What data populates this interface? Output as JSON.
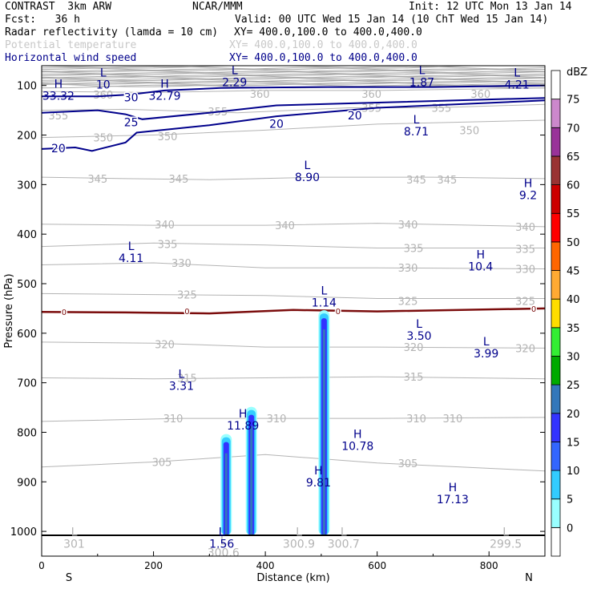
{
  "header": {
    "model": "CONTRAST  3km ARW",
    "org": "NCAR/MMM",
    "init": "Init: 12 UTC Mon 13 Jan 14",
    "fcst": "Fcst:   36 h",
    "valid": "Valid: 00 UTC Wed 15 Jan 14 (10 ChT Wed 15 Jan 14)",
    "fields": [
      {
        "name": "Radar reflectivity (lamda = 10 cm)",
        "xy": "XY= 400.0,100.0 to 400.0,400.0"
      },
      {
        "name": "Potential temperature",
        "xy": "XY= 400.0,100.0 to 400.0,400.0"
      },
      {
        "name": "Horizontal wind speed",
        "xy": "XY= 400.0,100.0 to 400.0,400.0"
      }
    ]
  },
  "colors": {
    "wind": "#00008b",
    "theta": "#b4b4b4",
    "freezing": "#7b0c0c",
    "strat": "#aaaaaa"
  },
  "chart_data": {
    "type": "cross-section",
    "xlabel": "Distance (km)",
    "ylabel": "Pressure (hPa)",
    "xlim": [
      0,
      900
    ],
    "ylim": [
      1050,
      60
    ],
    "x_ticks": [
      0,
      200,
      400,
      600,
      800
    ],
    "y_ticks": [
      100,
      200,
      300,
      400,
      500,
      600,
      700,
      800,
      900,
      1000
    ],
    "x_end_labels": {
      "left": "S",
      "right": "N"
    },
    "ground_pressure": 1008,
    "colorbar": {
      "unit": "dBZ",
      "levels": [
        0,
        5,
        10,
        15,
        20,
        25,
        30,
        35,
        40,
        45,
        50,
        55,
        60,
        65,
        70,
        75
      ],
      "colors": [
        "#ffffff",
        "#99ffff",
        "#33ccff",
        "#3366ff",
        "#3333ff",
        "#3377bb",
        "#00aa00",
        "#33ee33",
        "#ffdd00",
        "#ffaa33",
        "#ff6600",
        "#ff0000",
        "#cc0000",
        "#993333",
        "#993399",
        "#cc88cc",
        "#ffffff"
      ]
    },
    "theta_contours": [
      {
        "value": 360,
        "points": [
          [
            0,
            112
          ],
          [
            200,
            114
          ],
          [
            400,
            110
          ],
          [
            600,
            110
          ],
          [
            900,
            105
          ]
        ],
        "labels": [
          [
            110,
            118
          ],
          [
            390,
            117
          ],
          [
            590,
            117
          ],
          [
            785,
            117
          ]
        ]
      },
      {
        "value": 355,
        "points": [
          [
            0,
            150
          ],
          [
            150,
            148
          ],
          [
            350,
            155
          ],
          [
            550,
            145
          ],
          [
            700,
            145
          ],
          [
            900,
            138
          ]
        ],
        "labels": [
          [
            30,
            160
          ],
          [
            315,
            152
          ],
          [
            590,
            145
          ],
          [
            715,
            145
          ]
        ]
      },
      {
        "value": 350,
        "points": [
          [
            0,
            205
          ],
          [
            200,
            200
          ],
          [
            400,
            190
          ],
          [
            600,
            178
          ],
          [
            900,
            170
          ]
        ],
        "labels": [
          [
            110,
            205
          ],
          [
            225,
            202
          ],
          [
            765,
            190
          ]
        ]
      },
      {
        "value": 345,
        "points": [
          [
            0,
            285
          ],
          [
            150,
            288
          ],
          [
            300,
            290
          ],
          [
            500,
            285
          ],
          [
            700,
            285
          ],
          [
            900,
            288
          ]
        ],
        "labels": [
          [
            100,
            288
          ],
          [
            245,
            288
          ],
          [
            670,
            290
          ],
          [
            725,
            290
          ]
        ]
      },
      {
        "value": 340,
        "points": [
          [
            0,
            380
          ],
          [
            200,
            382
          ],
          [
            400,
            382
          ],
          [
            600,
            378
          ],
          [
            900,
            385
          ]
        ],
        "labels": [
          [
            220,
            380
          ],
          [
            435,
            382
          ],
          [
            655,
            380
          ],
          [
            865,
            385
          ]
        ]
      },
      {
        "value": 335,
        "points": [
          [
            0,
            425
          ],
          [
            200,
            418
          ],
          [
            400,
            422
          ],
          [
            600,
            428
          ],
          [
            900,
            428
          ]
        ],
        "labels": [
          [
            225,
            420
          ],
          [
            665,
            428
          ],
          [
            865,
            430
          ]
        ]
      },
      {
        "value": 330,
        "points": [
          [
            0,
            462
          ],
          [
            200,
            458
          ],
          [
            400,
            468
          ],
          [
            600,
            468
          ],
          [
            900,
            470
          ]
        ],
        "labels": [
          [
            250,
            458
          ],
          [
            655,
            468
          ],
          [
            865,
            470
          ]
        ]
      },
      {
        "value": 325,
        "points": [
          [
            0,
            520
          ],
          [
            200,
            522
          ],
          [
            400,
            524
          ],
          [
            600,
            530
          ],
          [
            900,
            530
          ]
        ],
        "labels": [
          [
            260,
            522
          ],
          [
            655,
            535
          ],
          [
            865,
            535
          ]
        ]
      },
      {
        "value": 320,
        "points": [
          [
            0,
            618
          ],
          [
            200,
            620
          ],
          [
            400,
            628
          ],
          [
            600,
            628
          ],
          [
            900,
            630
          ]
        ],
        "labels": [
          [
            220,
            622
          ],
          [
            665,
            628
          ],
          [
            865,
            630
          ]
        ]
      },
      {
        "value": 315,
        "points": [
          [
            0,
            690
          ],
          [
            200,
            692
          ],
          [
            400,
            690
          ],
          [
            600,
            688
          ],
          [
            900,
            692
          ]
        ],
        "labels": [
          [
            260,
            690
          ],
          [
            665,
            688
          ]
        ]
      },
      {
        "value": 310,
        "points": [
          [
            0,
            778
          ],
          [
            250,
            772
          ],
          [
            400,
            772
          ],
          [
            600,
            772
          ],
          [
            900,
            770
          ]
        ],
        "labels": [
          [
            235,
            772
          ],
          [
            420,
            772
          ],
          [
            670,
            772
          ],
          [
            735,
            772
          ]
        ]
      },
      {
        "value": 305,
        "points": [
          [
            0,
            870
          ],
          [
            200,
            860
          ],
          [
            400,
            845
          ],
          [
            600,
            862
          ],
          [
            900,
            878
          ]
        ],
        "labels": [
          [
            215,
            860
          ],
          [
            655,
            862
          ]
        ]
      }
    ],
    "wind_contours": [
      {
        "value": 30,
        "points": [
          [
            0,
            122
          ],
          [
            100,
            122
          ],
          [
            160,
            118
          ],
          [
            220,
            110
          ],
          [
            320,
            105
          ],
          [
            500,
            103
          ],
          [
            700,
            103
          ],
          [
            900,
            100
          ]
        ],
        "labels": [
          [
            160,
            124
          ]
        ]
      },
      {
        "value": 25,
        "points": [
          [
            0,
            155
          ],
          [
            100,
            150
          ],
          [
            150,
            158
          ],
          [
            180,
            168
          ],
          [
            300,
            155
          ],
          [
            420,
            140
          ],
          [
            900,
            125
          ]
        ],
        "labels": [
          [
            160,
            174
          ]
        ]
      },
      {
        "value": 20,
        "points": [
          [
            0,
            228
          ],
          [
            60,
            225
          ],
          [
            90,
            232
          ],
          [
            150,
            215
          ],
          [
            170,
            195
          ],
          [
            300,
            180
          ],
          [
            420,
            162
          ],
          [
            600,
            145
          ],
          [
            900,
            130
          ]
        ],
        "labels": [
          [
            30,
            227
          ],
          [
            420,
            177
          ],
          [
            560,
            160
          ]
        ]
      }
    ],
    "freezing_level": {
      "value": 0,
      "points": [
        [
          0,
          557
        ],
        [
          150,
          558
        ],
        [
          300,
          560
        ],
        [
          450,
          553
        ],
        [
          600,
          556
        ],
        [
          900,
          550
        ]
      ],
      "labels": [
        [
          40,
          557
        ],
        [
          260,
          555
        ],
        [
          530,
          555
        ],
        [
          880,
          550
        ]
      ]
    },
    "reflectivity_columns": [
      {
        "x": 330,
        "top": 810,
        "bottom": 1008,
        "max_dbz": 20
      },
      {
        "x": 375,
        "top": 755,
        "bottom": 1008,
        "max_dbz": 20
      },
      {
        "x": 505,
        "top": 560,
        "bottom": 1008,
        "max_dbz": 20
      }
    ],
    "wind_extrema": [
      {
        "type": "L",
        "value": "10",
        "x": 110,
        "p": 85
      },
      {
        "type": "L",
        "value": "2.29",
        "x": 345,
        "p": 80
      },
      {
        "type": "L",
        "value": "1.87",
        "x": 680,
        "p": 80
      },
      {
        "type": "L",
        "value": "4.21",
        "x": 850,
        "p": 85
      },
      {
        "type": "H",
        "value": "33.32",
        "x": 30,
        "p": 108
      },
      {
        "type": "H",
        "value": "32.79",
        "x": 220,
        "p": 108
      },
      {
        "type": "L",
        "value": "8.71",
        "x": 670,
        "p": 180
      },
      {
        "type": "L",
        "value": "8.90",
        "x": 475,
        "p": 272
      },
      {
        "type": "H",
        "value": "9.2",
        "x": 870,
        "p": 308
      },
      {
        "type": "L",
        "value": "4.11",
        "x": 160,
        "p": 435
      },
      {
        "type": "H",
        "value": "10.4",
        "x": 785,
        "p": 452
      },
      {
        "type": "L",
        "value": "1.14",
        "x": 505,
        "p": 525
      },
      {
        "type": "L",
        "value": "3.50",
        "x": 675,
        "p": 592
      },
      {
        "type": "L",
        "value": "3.99",
        "x": 795,
        "p": 628
      },
      {
        "type": "L",
        "value": "3.31",
        "x": 250,
        "p": 693
      },
      {
        "type": "H",
        "value": "11.89",
        "x": 360,
        "p": 773
      },
      {
        "type": "H",
        "value": "10.78",
        "x": 565,
        "p": 815
      },
      {
        "type": "H",
        "value": "9.81",
        "x": 495,
        "p": 888
      },
      {
        "type": "H",
        "value": "17.13",
        "x": 735,
        "p": 922
      },
      {
        "type": "L",
        "value": "1.56",
        "x": 322,
        "p": 1012
      }
    ],
    "theta_extrema": [
      {
        "type": "L",
        "value": "301",
        "x": 58,
        "p": 1012
      },
      {
        "type": "L",
        "value": "300.6",
        "x": 325,
        "p": 1030
      },
      {
        "type": "L",
        "value": "300.9",
        "x": 460,
        "p": 1012
      },
      {
        "type": "L",
        "value": "300.7",
        "x": 540,
        "p": 1012
      },
      {
        "type": "L",
        "value": "299.5",
        "x": 830,
        "p": 1012
      }
    ]
  }
}
